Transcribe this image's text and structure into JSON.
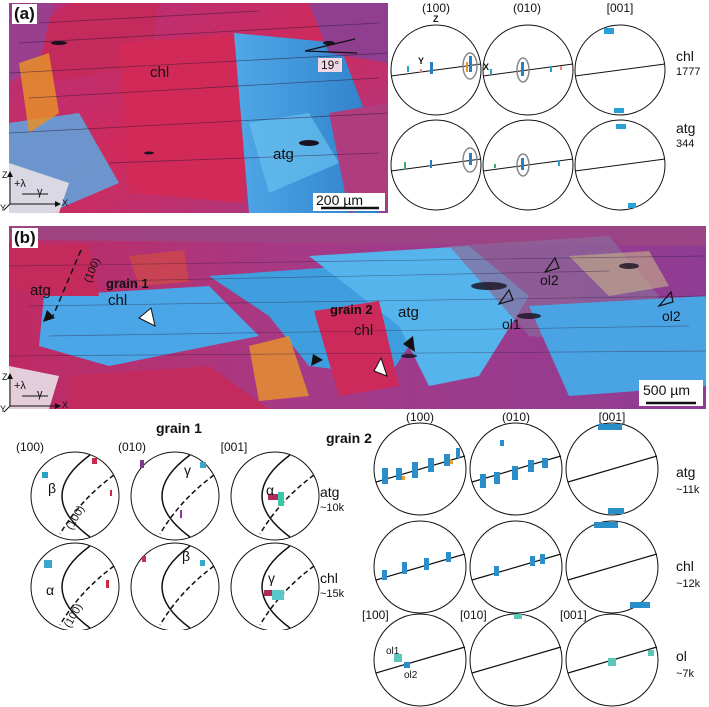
{
  "panel_a": {
    "label": "(a)",
    "map_labels": {
      "chl": "chl",
      "atg": "atg",
      "angle": "19°",
      "scale": "200 µm"
    },
    "axes": {
      "z": "Z",
      "y": "Y",
      "x": "X",
      "lambda": "+λ",
      "gamma": "γ"
    },
    "pf_titles": [
      "(100)",
      "(010)",
      "[001]"
    ],
    "pf_axis_labels": {
      "z": "Z",
      "y": "Y",
      "x": "X"
    },
    "rows": [
      {
        "mineral": "chl",
        "count": "1777"
      },
      {
        "mineral": "atg",
        "count": "344"
      }
    ]
  },
  "panel_b": {
    "label": "(b)",
    "map_labels": {
      "atg_left": "atg",
      "plane": "(100)",
      "grain1": "grain 1",
      "chl1": "chl",
      "grain2": "grain 2",
      "chl2": "chl",
      "atg2": "atg",
      "ol1": "ol1",
      "ol2a": "ol2",
      "ol2b": "ol2",
      "scale": "500 µm"
    },
    "axes": {
      "z": "Z",
      "y": "Y",
      "x": "X",
      "lambda": "+λ",
      "gamma": "γ"
    },
    "grain1": {
      "title": "grain 1",
      "pf_titles": [
        "(100)",
        "(010)",
        "[001]"
      ],
      "rows": [
        {
          "mineral": "atg",
          "count": "~10k",
          "symbols": [
            "β",
            "γ",
            "α"
          ],
          "plane_label": "(100)"
        },
        {
          "mineral": "chl",
          "count": "~15k",
          "symbols": [
            "α",
            "β",
            "γ"
          ],
          "plane_label": "(100)"
        }
      ]
    },
    "grain2": {
      "title": "grain 2",
      "pf_titles": [
        "(100)",
        "(010)",
        "[001]"
      ],
      "rows": [
        {
          "mineral": "atg",
          "count": "~11k"
        },
        {
          "mineral": "chl",
          "count": "~12k"
        },
        {
          "mineral": "ol",
          "count": "~7k",
          "pf_titles": [
            "[100]",
            "[010]",
            "[001]"
          ],
          "labels": [
            "ol1",
            "ol2"
          ]
        }
      ]
    }
  },
  "colors": {
    "chl": "#c8265e",
    "atg": "#3a9ee0",
    "bg_magenta": "#a43a8a",
    "orange": "#e8952a"
  }
}
